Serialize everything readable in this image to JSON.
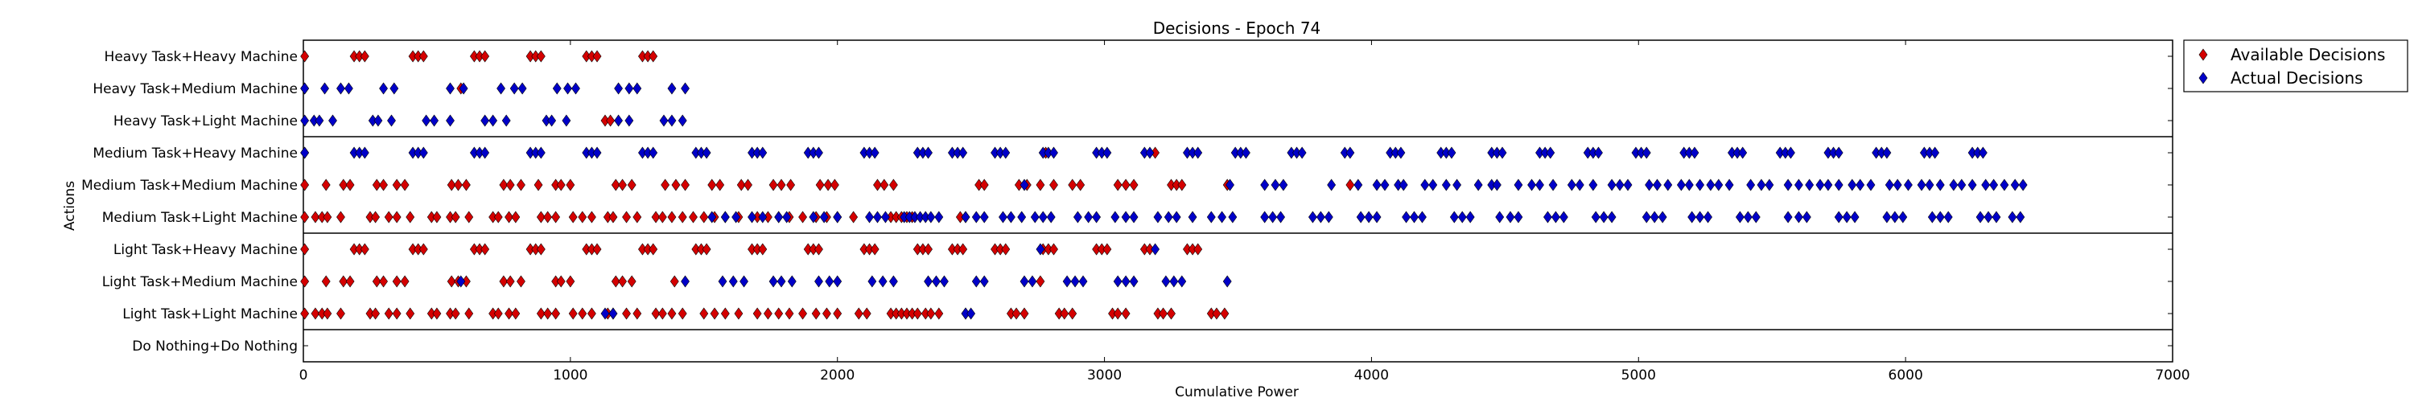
{
  "chart_data": {
    "type": "scatter",
    "title": "Decisions - Epoch 74",
    "xlabel": "Cumulative Power",
    "ylabel": "Actions",
    "xlim": [
      0,
      7000
    ],
    "xticks": [
      0,
      1000,
      2000,
      3000,
      4000,
      5000,
      6000,
      7000
    ],
    "categories": [
      "Heavy Task+Heavy Machine",
      "Heavy Task+Medium Machine",
      "Heavy Task+Light Machine",
      "Medium Task+Heavy Machine",
      "Medium Task+Medium Machine",
      "Medium Task+Light Machine",
      "Light Task+Heavy Machine",
      "Light Task+Medium Machine",
      "Light Task+Light Machine",
      "Do Nothing+Do Nothing"
    ],
    "group_separators_after": [
      2,
      5,
      8
    ],
    "legend": {
      "position": "outside-top-right"
    },
    "series": [
      {
        "name": "Available Decisions",
        "color": "#d40000",
        "x": {
          "Heavy Task+Heavy Machine": [
            5,
            190,
            210,
            230,
            410,
            430,
            450,
            640,
            660,
            680,
            850,
            870,
            890,
            1060,
            1080,
            1100,
            1270,
            1290,
            1310
          ],
          "Heavy Task+Medium Machine": [
            5,
            590
          ],
          "Heavy Task+Light Machine": [
            1130,
            1150
          ],
          "Medium Task+Heavy Machine": [
            5,
            2780,
            3190
          ],
          "Medium Task+Medium Machine": [
            5,
            85,
            150,
            175,
            275,
            300,
            350,
            380,
            555,
            580,
            610,
            750,
            775,
            815,
            880,
            945,
            965,
            1000,
            1170,
            1195,
            1230,
            1355,
            1395,
            1430,
            1530,
            1560,
            1640,
            1665,
            1760,
            1790,
            1825,
            1935,
            1965,
            1990,
            2150,
            2175,
            2210,
            2530,
            2550,
            2680,
            2710,
            2760,
            2810,
            2880,
            2910,
            3050,
            3080,
            3110,
            3250,
            3270,
            3290,
            3460,
            3920
          ],
          "Medium Task+Light Machine": [
            5,
            45,
            70,
            90,
            140,
            250,
            270,
            320,
            350,
            400,
            480,
            500,
            550,
            570,
            620,
            710,
            730,
            770,
            795,
            890,
            915,
            945,
            1010,
            1045,
            1080,
            1140,
            1160,
            1210,
            1250,
            1320,
            1345,
            1380,
            1420,
            1460,
            1500,
            1540,
            1580,
            1630,
            1700,
            1740,
            1780,
            1820,
            1870,
            1920,
            1960,
            2000,
            2060,
            2200,
            2220,
            2240,
            2260,
            2280,
            2460,
            2480
          ],
          "Light Task+Heavy Machine": [
            5,
            190,
            210,
            230,
            410,
            430,
            450,
            640,
            660,
            680,
            850,
            870,
            890,
            1060,
            1080,
            1100,
            1270,
            1290,
            1310,
            1470,
            1490,
            1510,
            1680,
            1700,
            1720,
            1890,
            1910,
            1930,
            2100,
            2120,
            2140,
            2300,
            2320,
            2340,
            2430,
            2450,
            2470,
            2590,
            2610,
            2630,
            2770,
            2790,
            2810,
            2970,
            2990,
            3010,
            3150,
            3170,
            3310,
            3330,
            3350
          ],
          "Light Task+Medium Machine": [
            5,
            85,
            150,
            175,
            275,
            300,
            350,
            380,
            555,
            580,
            610,
            750,
            775,
            815,
            945,
            965,
            1000,
            1170,
            1195,
            1230,
            1390,
            2760
          ],
          "Light Task+Light Machine": [
            5,
            45,
            70,
            90,
            140,
            250,
            270,
            320,
            350,
            400,
            480,
            500,
            550,
            570,
            620,
            710,
            730,
            770,
            795,
            890,
            915,
            945,
            1010,
            1045,
            1080,
            1140,
            1160,
            1210,
            1250,
            1320,
            1345,
            1380,
            1420,
            1500,
            1540,
            1580,
            1630,
            1700,
            1740,
            1780,
            1820,
            1870,
            1920,
            1960,
            2000,
            2080,
            2110,
            2200,
            2220,
            2240,
            2260,
            2280,
            2300,
            2330,
            2350,
            2380,
            2480,
            2650,
            2670,
            2700,
            2830,
            2850,
            2880,
            3030,
            3050,
            3080,
            3200,
            3220,
            3250,
            3400,
            3420,
            3450
          ],
          "Do Nothing+Do Nothing": []
        }
      },
      {
        "name": "Actual Decisions",
        "color": "#0000c8",
        "x": {
          "Heavy Task+Heavy Machine": [],
          "Heavy Task+Medium Machine": [
            5,
            80,
            140,
            170,
            300,
            340,
            550,
            600,
            740,
            790,
            820,
            950,
            990,
            1020,
            1180,
            1220,
            1250,
            1380,
            1430
          ],
          "Heavy Task+Light Machine": [
            5,
            40,
            60,
            110,
            260,
            280,
            330,
            460,
            490,
            550,
            680,
            710,
            760,
            910,
            930,
            985,
            1180,
            1220,
            1350,
            1380,
            1420
          ],
          "Medium Task+Heavy Machine": [
            5,
            190,
            210,
            230,
            410,
            430,
            450,
            640,
            660,
            680,
            850,
            870,
            890,
            1060,
            1080,
            1100,
            1270,
            1290,
            1310,
            1470,
            1490,
            1510,
            1680,
            1700,
            1720,
            1890,
            1910,
            1930,
            2100,
            2120,
            2140,
            2300,
            2320,
            2340,
            2430,
            2450,
            2470,
            2590,
            2610,
            2630,
            2770,
            2790,
            2810,
            2970,
            2990,
            3010,
            3150,
            3170,
            3310,
            3330,
            3350,
            3490,
            3510,
            3530,
            3700,
            3720,
            3740,
            3900,
            3920,
            4070,
            4090,
            4110,
            4260,
            4280,
            4300,
            4450,
            4470,
            4490,
            4630,
            4650,
            4670,
            4810,
            4830,
            4850,
            4990,
            5010,
            5030,
            5170,
            5190,
            5210,
            5350,
            5370,
            5390,
            5530,
            5550,
            5570,
            5710,
            5730,
            5750,
            5890,
            5910,
            5930,
            6070,
            6090,
            6110,
            6250,
            6270,
            6290
          ],
          "Medium Task+Medium Machine": [
            2700,
            3470,
            3600,
            3640,
            3670,
            3850,
            3950,
            4020,
            4050,
            4100,
            4120,
            4200,
            4230,
            4280,
            4320,
            4400,
            4450,
            4470,
            4550,
            4600,
            4630,
            4680,
            4750,
            4780,
            4830,
            4900,
            4930,
            4960,
            5040,
            5070,
            5110,
            5160,
            5190,
            5230,
            5270,
            5300,
            5340,
            5420,
            5460,
            5490,
            5560,
            5600,
            5640,
            5680,
            5710,
            5750,
            5800,
            5830,
            5870,
            5940,
            5970,
            6010,
            6060,
            6090,
            6130,
            6180,
            6210,
            6250,
            6300,
            6330,
            6370,
            6410,
            6440
          ],
          "Medium Task+Light Machine": [
            1530,
            1580,
            1620,
            1680,
            1720,
            1780,
            1810,
            1910,
            1950,
            2000,
            2120,
            2150,
            2180,
            2250,
            2270,
            2290,
            2310,
            2330,
            2350,
            2380,
            2480,
            2520,
            2550,
            2620,
            2650,
            2690,
            2740,
            2770,
            2800,
            2900,
            2940,
            2970,
            3040,
            3080,
            3110,
            3200,
            3240,
            3270,
            3330,
            3400,
            3440,
            3480,
            3600,
            3630,
            3660,
            3780,
            3810,
            3840,
            3960,
            3990,
            4020,
            4130,
            4160,
            4190,
            4310,
            4340,
            4370,
            4480,
            4520,
            4550,
            4660,
            4690,
            4720,
            4840,
            4870,
            4900,
            5030,
            5060,
            5090,
            5200,
            5230,
            5260,
            5380,
            5410,
            5440,
            5560,
            5600,
            5630,
            5750,
            5780,
            5810,
            5930,
            5960,
            5990,
            6100,
            6130,
            6160,
            6280,
            6310,
            6340,
            6400,
            6430
          ],
          "Light Task+Heavy Machine": [
            2760,
            3190
          ],
          "Light Task+Medium Machine": [
            590,
            1430,
            1570,
            1610,
            1650,
            1760,
            1790,
            1830,
            1930,
            1970,
            2000,
            2130,
            2170,
            2210,
            2340,
            2370,
            2400,
            2520,
            2550,
            2700,
            2730,
            2860,
            2890,
            2920,
            3050,
            3080,
            3110,
            3230,
            3260,
            3290,
            3460
          ],
          "Light Task+Light Machine": [
            1130,
            1160,
            2480,
            2500
          ],
          "Do Nothing+Do Nothing": []
        }
      }
    ]
  }
}
